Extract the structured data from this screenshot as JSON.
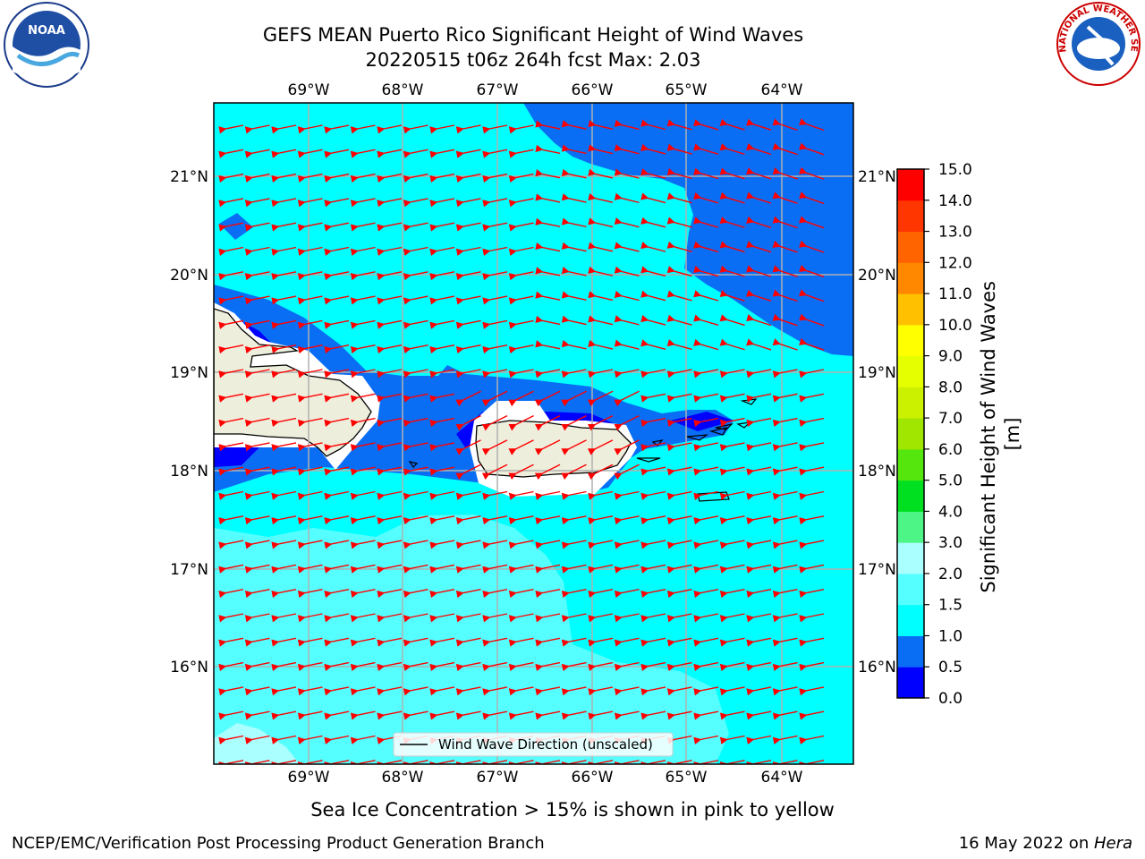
{
  "title": {
    "line1": "GEFS MEAN Puerto Rico Significant Height of Wind Waves",
    "line2": "20220515 t06z 264h fcst   Max: 2.03"
  },
  "map": {
    "lon_labels": [
      "69°W",
      "68°W",
      "67°W",
      "66°W",
      "65°W",
      "64°W"
    ],
    "lat_labels": [
      "21°N",
      "20°N",
      "19°N",
      "18°N",
      "17°N",
      "16°N"
    ],
    "legend_label": "Wind Wave Direction (unscaled)"
  },
  "colorbar": {
    "label": "Significant Height of Wind Waves [m]",
    "tick_labels": [
      "0.0",
      "0.5",
      "1.0",
      "1.5",
      "2.0",
      "3.0",
      "4.0",
      "5.0",
      "6.0",
      "7.0",
      "8.0",
      "9.0",
      "10.0",
      "11.0",
      "12.0",
      "13.0",
      "14.0",
      "15.0"
    ],
    "colors": [
      "#0000ff",
      "#0a6ef5",
      "#00ffff",
      "#55ffff",
      "#aaffff",
      "#4cf585",
      "#00e020",
      "#55e60e",
      "#a0e600",
      "#cbf000",
      "#e6ff00",
      "#ffff00",
      "#ffc000",
      "#ff8800",
      "#ff6400",
      "#ff3600",
      "#ff0000"
    ]
  },
  "colors": {
    "land": "#eeeedd",
    "coast": "#000000",
    "arrow": "#ff0000",
    "grid": "#b0b0b0"
  },
  "caption": "Sea Ice Concentration > 15% is shown in pink to yellow",
  "footer": {
    "left": "NCEP/EMC/Verification Post Processing Product Generation Branch",
    "right_date": "16 May 2022 on ",
    "right_host": "Hera"
  },
  "logos": {
    "noaa": "NOAA",
    "nws": "NATIONAL WEATHER SERVICE"
  }
}
